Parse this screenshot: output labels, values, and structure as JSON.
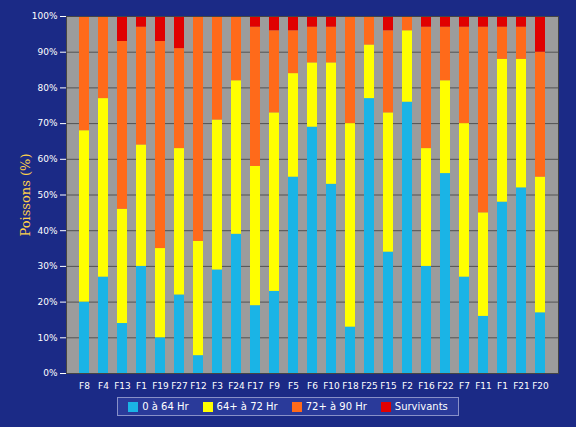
{
  "chart_data": {
    "type": "bar",
    "stacked": true,
    "grid": true,
    "legend": "bottom",
    "y_label": "Poissons (%)",
    "categories": [
      "F8",
      "F4",
      "F13",
      "F1",
      "F19",
      "F27",
      "F12",
      "F3",
      "F24",
      "F17",
      "F9",
      "F5",
      "F6",
      "F10",
      "F18",
      "F25",
      "F15",
      "F2",
      "F16",
      "F22",
      "F7",
      "F11",
      "F1",
      "F21",
      "F20"
    ],
    "series": [
      {
        "name": "0 à 64 Hr",
        "color": "#1ab4e6",
        "values": [
          20,
          27,
          14,
          30,
          10,
          22,
          5,
          29,
          39,
          19,
          23,
          55,
          69,
          53,
          13,
          77,
          34,
          76,
          30,
          56,
          27,
          16,
          48,
          52,
          17
        ]
      },
      {
        "name": "64+ à 72 Hr",
        "color": "#ffff00",
        "values": [
          48,
          50,
          32,
          34,
          25,
          41,
          32,
          42,
          43,
          39,
          50,
          29,
          18,
          34,
          57,
          15,
          39,
          20,
          33,
          26,
          43,
          29,
          40,
          36,
          38
        ]
      },
      {
        "name": "72+ à 90 Hr",
        "color": "#ff6a1a",
        "values": [
          32,
          23,
          47,
          33,
          58,
          28,
          63,
          29,
          18,
          39,
          23,
          12,
          10,
          10,
          30,
          8,
          23,
          4,
          34,
          15,
          27,
          52,
          9,
          9,
          35
        ]
      },
      {
        "name": "Survivants",
        "color": "#e00000",
        "values": [
          0,
          0,
          7,
          3,
          7,
          9,
          0,
          0,
          0,
          3,
          4,
          4,
          3,
          3,
          0,
          0,
          4,
          0,
          3,
          3,
          3,
          3,
          3,
          3,
          10
        ]
      }
    ],
    "ylim": [
      0,
      100
    ],
    "yticks": [
      {
        "value": 0,
        "label": "0%"
      },
      {
        "value": 10,
        "label": "10%"
      },
      {
        "value": 20,
        "label": "20%"
      },
      {
        "value": 30,
        "label": "30%"
      },
      {
        "value": 40,
        "label": "40%"
      },
      {
        "value": 50,
        "label": "50%"
      },
      {
        "value": 60,
        "label": "60%"
      },
      {
        "value": 70,
        "label": "70%"
      },
      {
        "value": 80,
        "label": "80%"
      },
      {
        "value": 90,
        "label": "90%"
      },
      {
        "value": 100,
        "label": "100%"
      }
    ]
  }
}
